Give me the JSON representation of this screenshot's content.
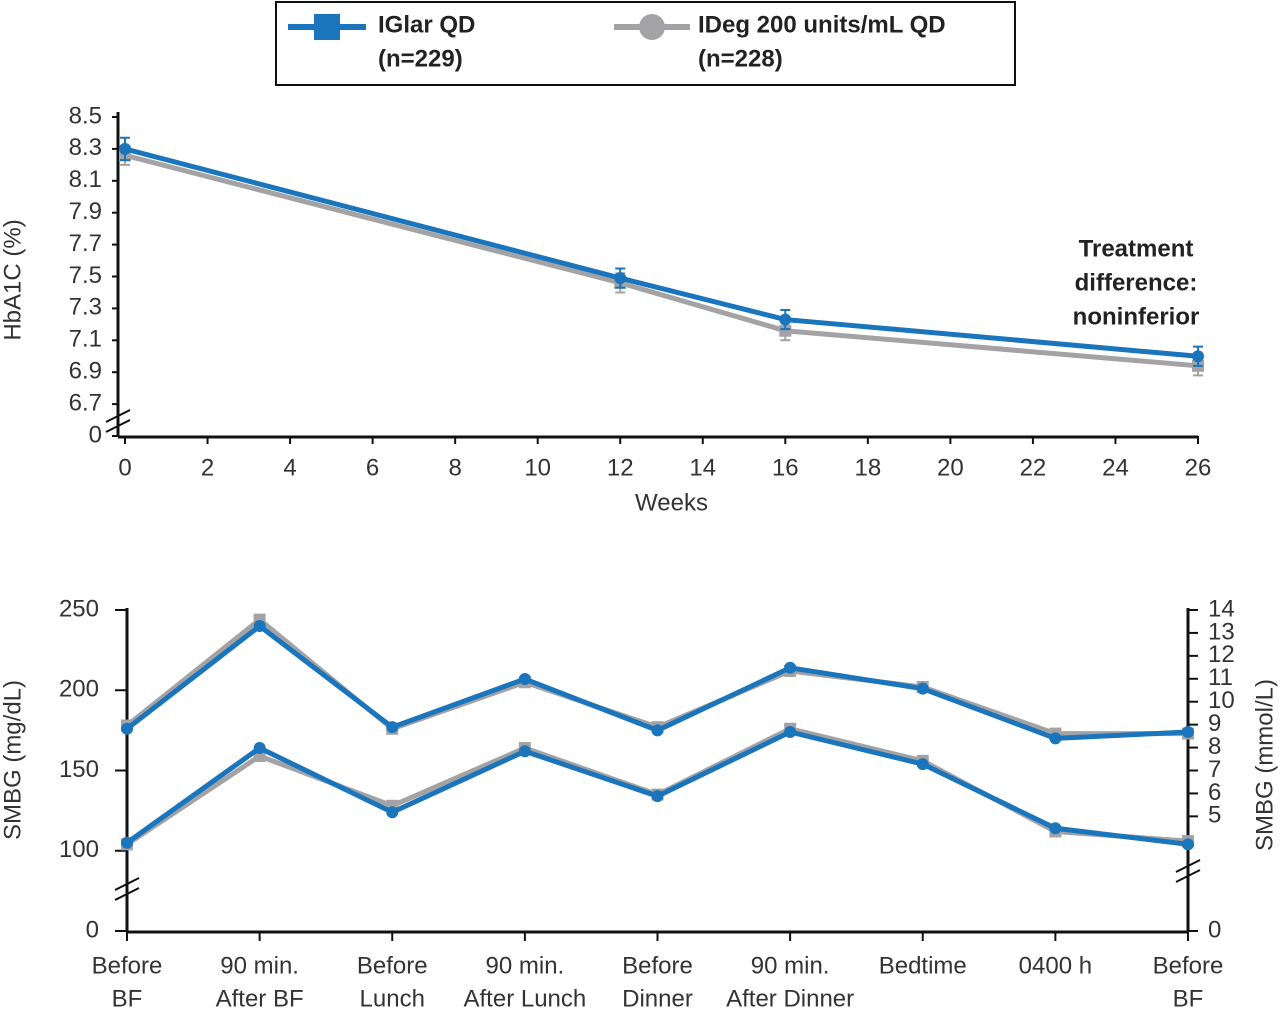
{
  "legend": {
    "items": [
      {
        "label": "IGlar QD",
        "sublabel": "(n=229)",
        "color": "#1a75bc",
        "marker": "square"
      },
      {
        "label": "IDeg 200 units/mL QD",
        "sublabel": "(n=228)",
        "color": "#a3a3a5",
        "marker": "circle"
      }
    ]
  },
  "chart_data": [
    {
      "type": "line",
      "xlabel": "Weeks",
      "ylabel": "HbA1C (%)",
      "annotation": [
        "Treatment",
        "difference:",
        "noninferior"
      ],
      "x": [
        0,
        12,
        16,
        26
      ],
      "series": [
        {
          "color": "#a3a3a5",
          "marker": "square",
          "values": [
            8.26,
            7.46,
            7.16,
            6.94
          ],
          "errors": [
            0.06,
            0.06,
            0.06,
            0.06
          ]
        },
        {
          "color": "#1a75bc",
          "marker": "circle",
          "values": [
            8.3,
            7.49,
            7.23,
            7.0
          ],
          "errors": [
            0.07,
            0.06,
            0.06,
            0.06
          ]
        }
      ],
      "xlim": [
        0,
        26
      ],
      "xticks": [
        0,
        2,
        4,
        6,
        8,
        10,
        12,
        14,
        16,
        18,
        20,
        22,
        24,
        26
      ],
      "ylim": [
        0,
        8.5
      ],
      "ybreak": [
        0,
        6.5
      ],
      "yticks": [
        0,
        6.7,
        6.9,
        7.1,
        7.3,
        7.5,
        7.7,
        7.9,
        8.1,
        8.3,
        8.5
      ]
    },
    {
      "type": "line",
      "ylabel": "SMBG (mg/dL)",
      "y2label": "SMBG (mmol/L)",
      "categories": [
        [
          "Before",
          "BF"
        ],
        [
          "90 min.",
          "After BF"
        ],
        [
          "Before",
          "Lunch"
        ],
        [
          "90 min.",
          "After Lunch"
        ],
        [
          "Before",
          "Dinner"
        ],
        [
          "90 min.",
          "After Dinner"
        ],
        [
          "Bedtime"
        ],
        [
          "0400 h"
        ],
        [
          "Before",
          "BF"
        ]
      ],
      "series": [
        {
          "color": "#a3a3a5",
          "marker": "square",
          "values": [
            178,
            244,
            176,
            205,
            177,
            212,
            202,
            173,
            173
          ]
        },
        {
          "color": "#1a75bc",
          "marker": "circle",
          "values": [
            176,
            240,
            177,
            207,
            175,
            214,
            201,
            170,
            174
          ]
        },
        {
          "color": "#a3a3a5",
          "marker": "square",
          "values": [
            104,
            159,
            128,
            164,
            135,
            176,
            156,
            112,
            106
          ]
        },
        {
          "color": "#1a75bc",
          "marker": "circle",
          "values": [
            105,
            164,
            124,
            162,
            134,
            174,
            154,
            114,
            104
          ]
        }
      ],
      "ylim": [
        0,
        250
      ],
      "ybreak": [
        0,
        50
      ],
      "yticks": [
        0,
        100,
        150,
        200,
        250
      ],
      "y2lim": [
        0,
        14
      ],
      "y2ticks": [
        0,
        5,
        6,
        7,
        8,
        9,
        10,
        11,
        12,
        13,
        14
      ]
    }
  ]
}
